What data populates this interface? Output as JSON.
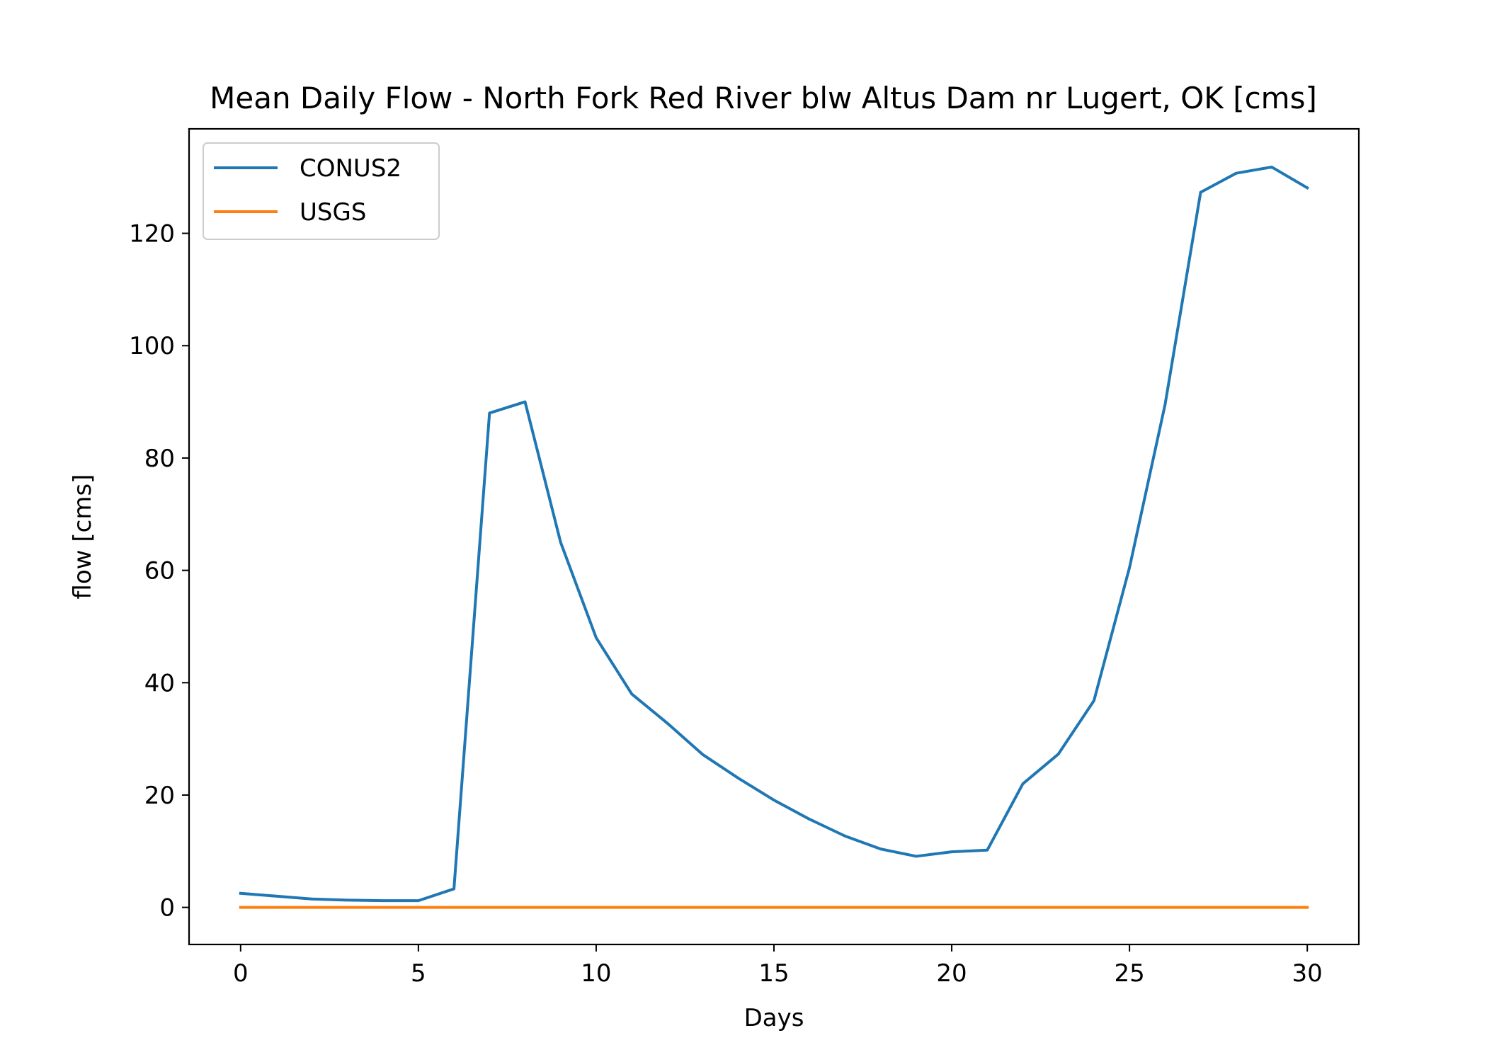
{
  "chart_data": {
    "type": "line",
    "title": "Mean Daily Flow - North Fork Red River blw Altus Dam nr Lugert, OK [cms]",
    "xlabel": "Days",
    "ylabel": "flow [cms]",
    "xlim": [
      -1.45,
      31.45
    ],
    "ylim": [
      -6.6,
      138.6
    ],
    "xticks": [
      0,
      5,
      10,
      15,
      20,
      25,
      30
    ],
    "yticks": [
      0,
      20,
      40,
      60,
      80,
      100,
      120
    ],
    "grid": false,
    "legend_position": "top-left",
    "series": [
      {
        "name": "CONUS2",
        "color": "#1f77b4",
        "x": [
          0,
          1,
          2,
          3,
          4,
          5,
          6,
          7,
          8,
          9,
          10,
          11,
          12,
          13,
          14,
          15,
          16,
          17,
          18,
          19,
          20,
          21,
          22,
          23,
          24,
          25,
          26,
          27,
          28,
          29,
          30
        ],
        "values": [
          2.5,
          2.0,
          1.5,
          1.3,
          1.2,
          1.2,
          3.3,
          88,
          90,
          65,
          48,
          38,
          32.8,
          27.2,
          23,
          19.1,
          15.7,
          12.7,
          10.4,
          9.1,
          9.9,
          10.2,
          22,
          27.3,
          36.8,
          60.5,
          89.5,
          127.3,
          130.7,
          131.8,
          128.1
        ]
      },
      {
        "name": "USGS",
        "color": "#ff7f0e",
        "x": [
          0,
          1,
          2,
          3,
          4,
          5,
          6,
          7,
          8,
          9,
          10,
          11,
          12,
          13,
          14,
          15,
          16,
          17,
          18,
          19,
          20,
          21,
          22,
          23,
          24,
          25,
          26,
          27,
          28,
          29,
          30
        ],
        "values": [
          0,
          0,
          0,
          0,
          0,
          0,
          0,
          0,
          0,
          0,
          0,
          0,
          0,
          0,
          0,
          0,
          0,
          0,
          0,
          0,
          0,
          0,
          0,
          0,
          0,
          0,
          0,
          0,
          0,
          0,
          0
        ]
      }
    ]
  }
}
